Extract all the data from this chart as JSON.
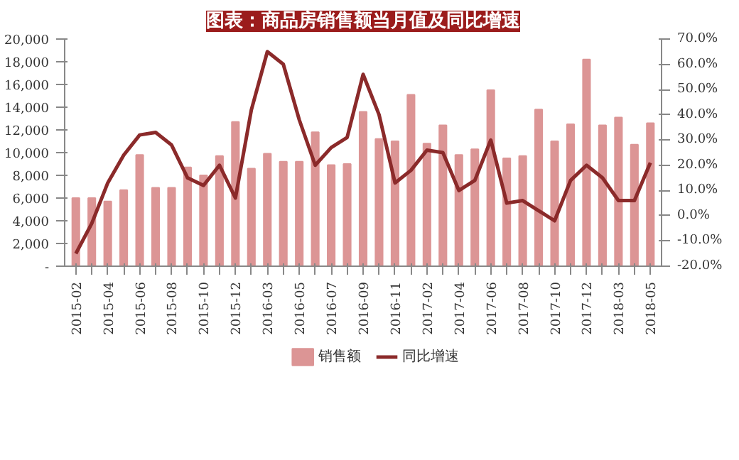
{
  "chart_data": {
    "type": "bar",
    "title": "图表：商品房销售额当月值及同比增速",
    "categories": [
      "2015-02",
      null,
      "2015-04",
      null,
      "2015-06",
      null,
      "2015-08",
      null,
      "2015-10",
      null,
      "2015-12",
      null,
      "2016-03",
      null,
      "2016-05",
      null,
      "2016-07",
      null,
      "2016-09",
      null,
      "2016-11",
      null,
      "2017-02",
      null,
      "2017-04",
      null,
      "2017-06",
      null,
      "2017-08",
      null,
      "2017-10",
      null,
      "2017-12",
      null,
      "2018-03",
      null,
      "2018-05"
    ],
    "series": [
      {
        "name": "销售额",
        "color": "#dc9595",
        "values": [
          6000,
          6000,
          5700,
          6700,
          9800,
          6900,
          6900,
          8700,
          8000,
          9700,
          12700,
          8600,
          9900,
          9200,
          9200,
          11800,
          8900,
          9000,
          13600,
          11200,
          11000,
          15100,
          10800,
          12400,
          9800,
          10300,
          15500,
          9500,
          9700,
          13800,
          11000,
          12500,
          18200,
          12400,
          13100,
          10700,
          12600
        ]
      },
      {
        "name": "同比增速",
        "type": "line",
        "axis": "y2",
        "color": "#8b2a2a",
        "values": [
          -15,
          -3,
          13,
          24,
          32,
          33,
          28,
          15,
          12,
          20,
          7,
          42,
          65,
          60,
          38,
          20,
          27,
          31,
          56,
          40,
          13,
          18,
          26,
          25,
          10,
          14,
          30,
          5,
          6,
          2,
          -2,
          14,
          20,
          15,
          6,
          6,
          21
        ]
      }
    ],
    "ylim": [
      0,
      20000
    ],
    "yticks": [
      {
        "value": 0,
        "label": "-"
      },
      {
        "value": 2000,
        "label": "2,000"
      },
      {
        "value": 4000,
        "label": "4,000"
      },
      {
        "value": 6000,
        "label": "6,000"
      },
      {
        "value": 8000,
        "label": "8,000"
      },
      {
        "value": 10000,
        "label": "10,000"
      },
      {
        "value": 12000,
        "label": "12,000"
      },
      {
        "value": 14000,
        "label": "14,000"
      },
      {
        "value": 16000,
        "label": "16,000"
      },
      {
        "value": 18000,
        "label": "18,000"
      },
      {
        "value": 20000,
        "label": "20,000"
      }
    ],
    "y2lim": [
      -20,
      70
    ],
    "y2ticks": [
      {
        "value": -20,
        "label": "-20.0%"
      },
      {
        "value": -10,
        "label": "-10.0%"
      },
      {
        "value": 0,
        "label": "0.0%"
      },
      {
        "value": 10,
        "label": "10.0%"
      },
      {
        "value": 20,
        "label": "20.0%"
      },
      {
        "value": 30,
        "label": "30.0%"
      },
      {
        "value": 40,
        "label": "40.0%"
      },
      {
        "value": 50,
        "label": "50.0%"
      },
      {
        "value": 60,
        "label": "60.0%"
      },
      {
        "value": 70,
        "label": "70.0%"
      }
    ],
    "grid": false,
    "legend": "bottom"
  }
}
